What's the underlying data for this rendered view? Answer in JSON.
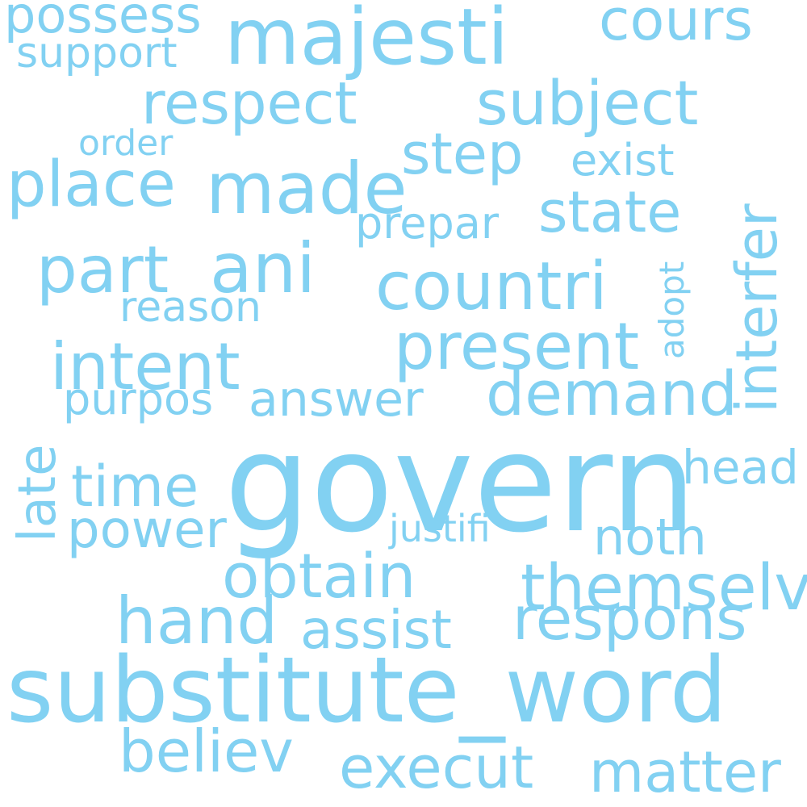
{
  "word_cloud": {
    "color": "#82d1f2",
    "background": "#ffffff",
    "words": {
      "govern": "govern",
      "substitute_word": "substitute_word",
      "majesti": "majesti",
      "possess": "possess",
      "support": "support",
      "cours": "cours",
      "respect": "respect",
      "subject": "subject",
      "order": "order",
      "step": "step",
      "exist": "exist",
      "place": "place",
      "made": "made",
      "prepar": "prepar",
      "state": "state",
      "interfer": "interfer",
      "part": "part",
      "ani": "ani",
      "countri": "countri",
      "adopt": "adopt",
      "reason": "reason",
      "present": "present",
      "intent": "intent",
      "demand": "demand",
      "purpos": "purpos",
      "answer": "answer",
      "late": "late",
      "head": "head",
      "time": "time",
      "power": "power",
      "justifi": "justifi",
      "noth": "noth",
      "obtain": "obtain",
      "themselv": "themselv",
      "hand": "hand",
      "assist": "assist",
      "respons": "respons",
      "believ": "believ",
      "execut": "execut",
      "matter": "matter"
    }
  }
}
